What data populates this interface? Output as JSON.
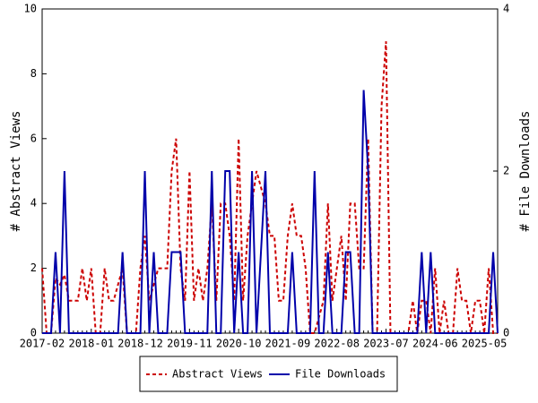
{
  "chart_data": {
    "type": "line",
    "categories": [
      "2017-02",
      null,
      null,
      null,
      null,
      null,
      null,
      null,
      null,
      null,
      null,
      "2018-01",
      null,
      null,
      null,
      null,
      null,
      null,
      null,
      null,
      null,
      null,
      "2018-12",
      null,
      null,
      null,
      null,
      null,
      null,
      null,
      null,
      null,
      null,
      "2019-11",
      null,
      null,
      null,
      null,
      null,
      null,
      null,
      null,
      null,
      null,
      "2020-10",
      null,
      null,
      null,
      null,
      null,
      null,
      null,
      null,
      null,
      null,
      "2021-09",
      null,
      null,
      null,
      null,
      null,
      null,
      null,
      null,
      null,
      null,
      "2022-08",
      null,
      null,
      null,
      null,
      null,
      null,
      null,
      null,
      null,
      null,
      "2023-07",
      null,
      null,
      null,
      null,
      null,
      null,
      null,
      null,
      null,
      null,
      "2024-06",
      null,
      null,
      null,
      null,
      null,
      null,
      null,
      null,
      null,
      null,
      "2025-05",
      null,
      null,
      null
    ],
    "series": [
      {
        "name": "Abstract Views",
        "color": "#cc0000",
        "dashed": true,
        "values": [
          2,
          0,
          0,
          1.7,
          1.5,
          1.8,
          1,
          1,
          1,
          2,
          1,
          2,
          0,
          0,
          2,
          1,
          1,
          1.5,
          2,
          0,
          0,
          0,
          2,
          3,
          1,
          1.5,
          2,
          2,
          2,
          5,
          6,
          2,
          1,
          5,
          1,
          2,
          1,
          2,
          4,
          1,
          4,
          4,
          3,
          1,
          6,
          1,
          3,
          4,
          5,
          4.5,
          4,
          3,
          3,
          1,
          1,
          3,
          4,
          3,
          3,
          2,
          0,
          0,
          0.5,
          1,
          4,
          1,
          2,
          3,
          1,
          4,
          4,
          2,
          2,
          6,
          0,
          0,
          7,
          9,
          0,
          0,
          0,
          0,
          0,
          1,
          0,
          1,
          1,
          0,
          2,
          0,
          1,
          0,
          0,
          2,
          1,
          1,
          0,
          1,
          1,
          0,
          2,
          0,
          0
        ]
      },
      {
        "name": "File Downloads",
        "color": "#0000aa",
        "dashed": false,
        "axis": "y2",
        "values": [
          0,
          0,
          0,
          1,
          0,
          2,
          0,
          0,
          0,
          0,
          0,
          0,
          0,
          0,
          0,
          0,
          0,
          0,
          1,
          0,
          0,
          0,
          0,
          2,
          0,
          1,
          0,
          0,
          0,
          1,
          1,
          1,
          0,
          0,
          0,
          0,
          0,
          0,
          2,
          0,
          0,
          2,
          2,
          0,
          1,
          0,
          0,
          2,
          0,
          1,
          2,
          0,
          0,
          0,
          0,
          0,
          1,
          0,
          0,
          0,
          0,
          2,
          0,
          0,
          1,
          0,
          0,
          0,
          1,
          1,
          0,
          0,
          3,
          2,
          0,
          0,
          0,
          0,
          0,
          0,
          0,
          0,
          0,
          0,
          0,
          1,
          0,
          1,
          0,
          0,
          0,
          0,
          0,
          0,
          0,
          0,
          0,
          0,
          0,
          0,
          0,
          1,
          0
        ]
      }
    ],
    "ylabel": "# Abstract Views",
    "y2label": "# File Downloads",
    "ylim": [
      0,
      10
    ],
    "yticks": [
      0,
      2,
      4,
      6,
      8,
      10
    ],
    "y2lim": [
      0,
      4
    ],
    "y2ticks": [
      0,
      2,
      4
    ]
  }
}
